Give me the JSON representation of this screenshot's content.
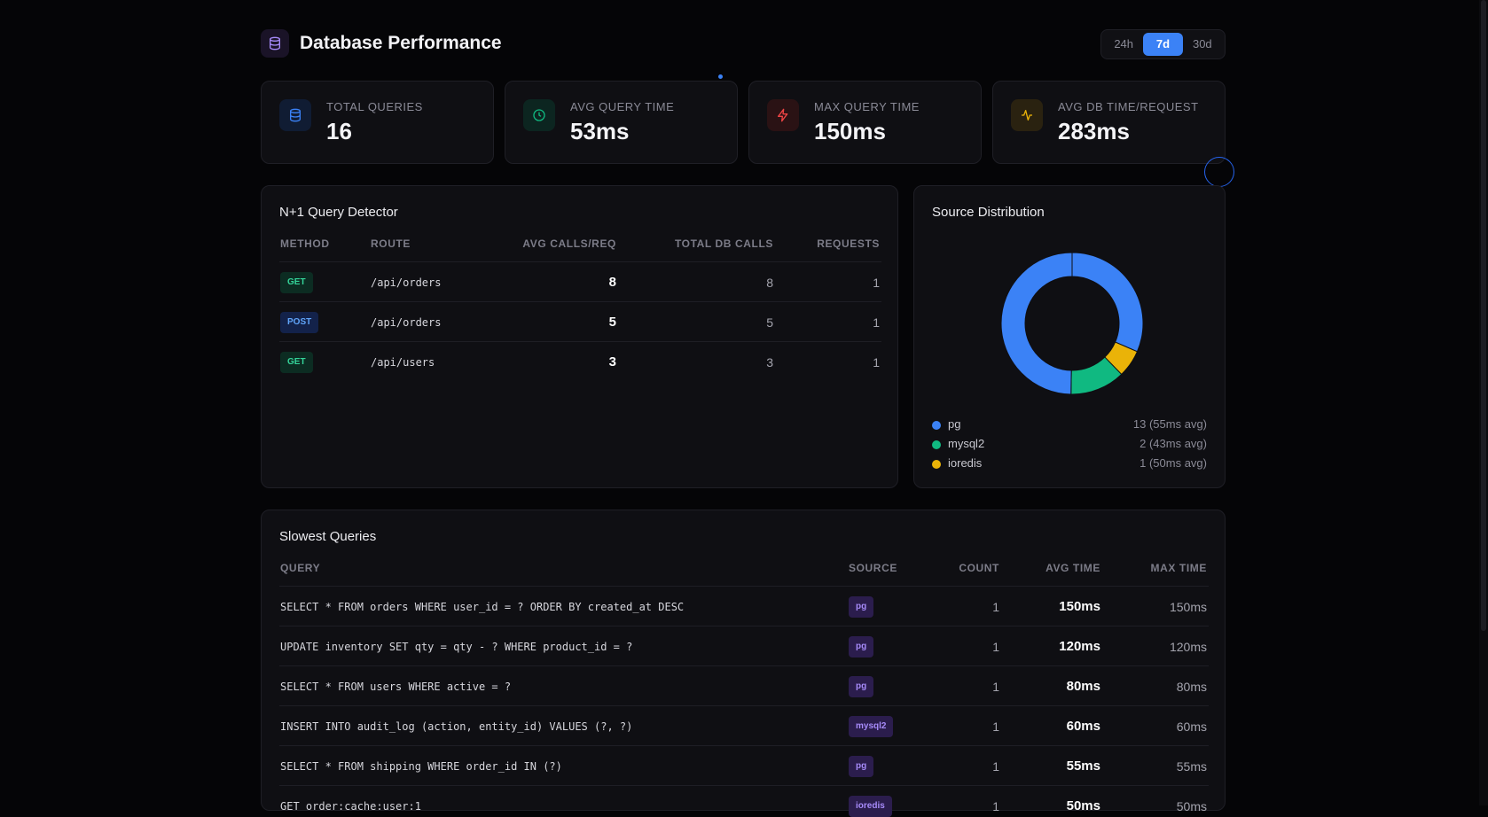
{
  "header": {
    "title": "Database Performance",
    "logo_icon": "database-icon",
    "ranges": [
      "24h",
      "7d",
      "30d"
    ],
    "active_range": "7d"
  },
  "stats": [
    {
      "label": "TOTAL QUERIES",
      "value": "16",
      "icon": "database-icon",
      "color": "#3b82f6"
    },
    {
      "label": "AVG QUERY TIME",
      "value": "53ms",
      "icon": "clock-icon",
      "color": "#10b981"
    },
    {
      "label": "MAX QUERY TIME",
      "value": "150ms",
      "icon": "lightning-icon",
      "color": "#ef4444"
    },
    {
      "label": "AVG DB TIME/REQUEST",
      "value": "283ms",
      "icon": "activity-icon",
      "color": "#eab308"
    }
  ],
  "nplus": {
    "title": "N+1 Query Detector",
    "columns": [
      "METHOD",
      "ROUTE",
      "AVG CALLS/REQ",
      "TOTAL DB CALLS",
      "REQUESTS"
    ],
    "rows": [
      {
        "method": "GET",
        "route": "/api/orders",
        "avg": "8",
        "total": "8",
        "requests": "1"
      },
      {
        "method": "POST",
        "route": "/api/orders",
        "avg": "5",
        "total": "5",
        "requests": "1"
      },
      {
        "method": "GET",
        "route": "/api/users",
        "avg": "3",
        "total": "3",
        "requests": "1"
      }
    ]
  },
  "source": {
    "title": "Source Distribution",
    "items": [
      {
        "name": "pg",
        "label": "13 (55ms avg)",
        "count": 13,
        "color": "#3b82f6"
      },
      {
        "name": "mysql2",
        "label": "2 (43ms avg)",
        "count": 2,
        "color": "#10b981"
      },
      {
        "name": "ioredis",
        "label": "1 (50ms avg)",
        "count": 1,
        "color": "#eab308"
      }
    ]
  },
  "slowest": {
    "title": "Slowest Queries",
    "columns": [
      "QUERY",
      "SOURCE",
      "COUNT",
      "AVG TIME",
      "MAX TIME"
    ],
    "rows": [
      {
        "query": "SELECT * FROM orders WHERE user_id = ? ORDER BY created_at DESC",
        "source": "pg",
        "count": "1",
        "avg": "150ms",
        "max": "150ms"
      },
      {
        "query": "UPDATE inventory SET qty = qty - ? WHERE product_id = ?",
        "source": "pg",
        "count": "1",
        "avg": "120ms",
        "max": "120ms"
      },
      {
        "query": "SELECT * FROM users WHERE active = ?",
        "source": "pg",
        "count": "1",
        "avg": "80ms",
        "max": "80ms"
      },
      {
        "query": "INSERT INTO audit_log (action, entity_id) VALUES (?, ?)",
        "source": "mysql2",
        "count": "1",
        "avg": "60ms",
        "max": "60ms"
      },
      {
        "query": "SELECT * FROM shipping WHERE order_id IN (?)",
        "source": "pg",
        "count": "1",
        "avg": "55ms",
        "max": "55ms"
      },
      {
        "query": "GET order:cache:user:1",
        "source": "ioredis",
        "count": "1",
        "avg": "50ms",
        "max": "50ms"
      }
    ]
  }
}
